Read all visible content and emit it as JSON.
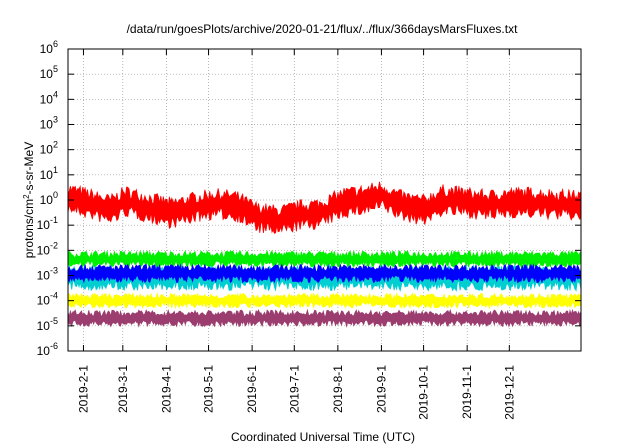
{
  "chart_data": {
    "type": "line",
    "title": "/data/run/goesPlots/archive/2020-01-21/flux/../flux/366daysMarsFluxes.txt",
    "xlabel": "Coordinated Universal Time (UTC)",
    "ylabel": "protons/cm^2-s-sr-MeV",
    "y_scale": "log",
    "ylim": [
      1e-06,
      1000000.0
    ],
    "xlim": [
      "2019-01-21",
      "2020-01-21"
    ],
    "grid": true,
    "legend": "none",
    "y_ticks": [
      {
        "value": 1e-06,
        "base": "10",
        "exp": "-6"
      },
      {
        "value": 1e-05,
        "base": "10",
        "exp": "-5"
      },
      {
        "value": 0.0001,
        "base": "10",
        "exp": "-4"
      },
      {
        "value": 0.001,
        "base": "10",
        "exp": "-3"
      },
      {
        "value": 0.01,
        "base": "10",
        "exp": "-2"
      },
      {
        "value": 0.1,
        "base": "10",
        "exp": "-1"
      },
      {
        "value": 1.0,
        "base": "10",
        "exp": "0"
      },
      {
        "value": 10.0,
        "base": "10",
        "exp": "1"
      },
      {
        "value": 100.0,
        "base": "10",
        "exp": "2"
      },
      {
        "value": 1000.0,
        "base": "10",
        "exp": "3"
      },
      {
        "value": 10000.0,
        "base": "10",
        "exp": "4"
      },
      {
        "value": 100000.0,
        "base": "10",
        "exp": "5"
      },
      {
        "value": 1000000.0,
        "base": "10",
        "exp": "6"
      }
    ],
    "x_ticks": [
      "2019-2-1",
      "2019-3-1",
      "2019-4-1",
      "2019-5-1",
      "2019-6-1",
      "2019-7-1",
      "2019-8-1",
      "2019-9-1",
      "2019-10-1",
      "2019-11-1",
      "2019-12-1"
    ],
    "series": [
      {
        "color": "#ff0000",
        "x": [
          "2019-01-21",
          "2019-02-05",
          "2019-02-20",
          "2019-03-03",
          "2019-03-20",
          "2019-04-05",
          "2019-04-20",
          "2019-05-05",
          "2019-05-20",
          "2019-06-05",
          "2019-06-20",
          "2019-07-05",
          "2019-07-20",
          "2019-08-05",
          "2019-08-20",
          "2019-09-01",
          "2019-09-15",
          "2019-10-01",
          "2019-10-15",
          "2019-11-01",
          "2019-11-15",
          "2019-12-01",
          "2019-12-15",
          "2020-01-01",
          "2020-01-21"
        ],
        "values": [
          1.2,
          0.7,
          0.4,
          0.9,
          0.5,
          0.3,
          0.5,
          0.7,
          0.6,
          0.2,
          0.15,
          0.25,
          0.3,
          0.8,
          1.0,
          1.5,
          0.6,
          0.4,
          1.0,
          0.8,
          0.6,
          0.8,
          0.8,
          0.7,
          0.6
        ],
        "spread": 0.35
      },
      {
        "color": "#00ee00",
        "x": [
          "2019-01-21",
          "2020-01-21"
        ],
        "values": [
          0.0045,
          0.0045
        ],
        "spread": 0.18
      },
      {
        "color": "#00ced1",
        "x": [
          "2019-01-21",
          "2020-01-21"
        ],
        "values": [
          0.0008,
          0.0008
        ],
        "spread": 0.28
      },
      {
        "color": "#0000ff",
        "x": [
          "2019-01-21",
          "2020-01-21"
        ],
        "values": [
          0.0012,
          0.0012
        ],
        "spread": 0.2
      },
      {
        "color": "#ffff00",
        "x": [
          "2019-01-21",
          "2020-01-21"
        ],
        "values": [
          0.0001,
          0.0001
        ],
        "spread": 0.16
      },
      {
        "color": "#9b3d6e",
        "x": [
          "2019-01-21",
          "2020-01-21"
        ],
        "values": [
          2e-05,
          2e-05
        ],
        "spread": 0.18
      }
    ]
  }
}
